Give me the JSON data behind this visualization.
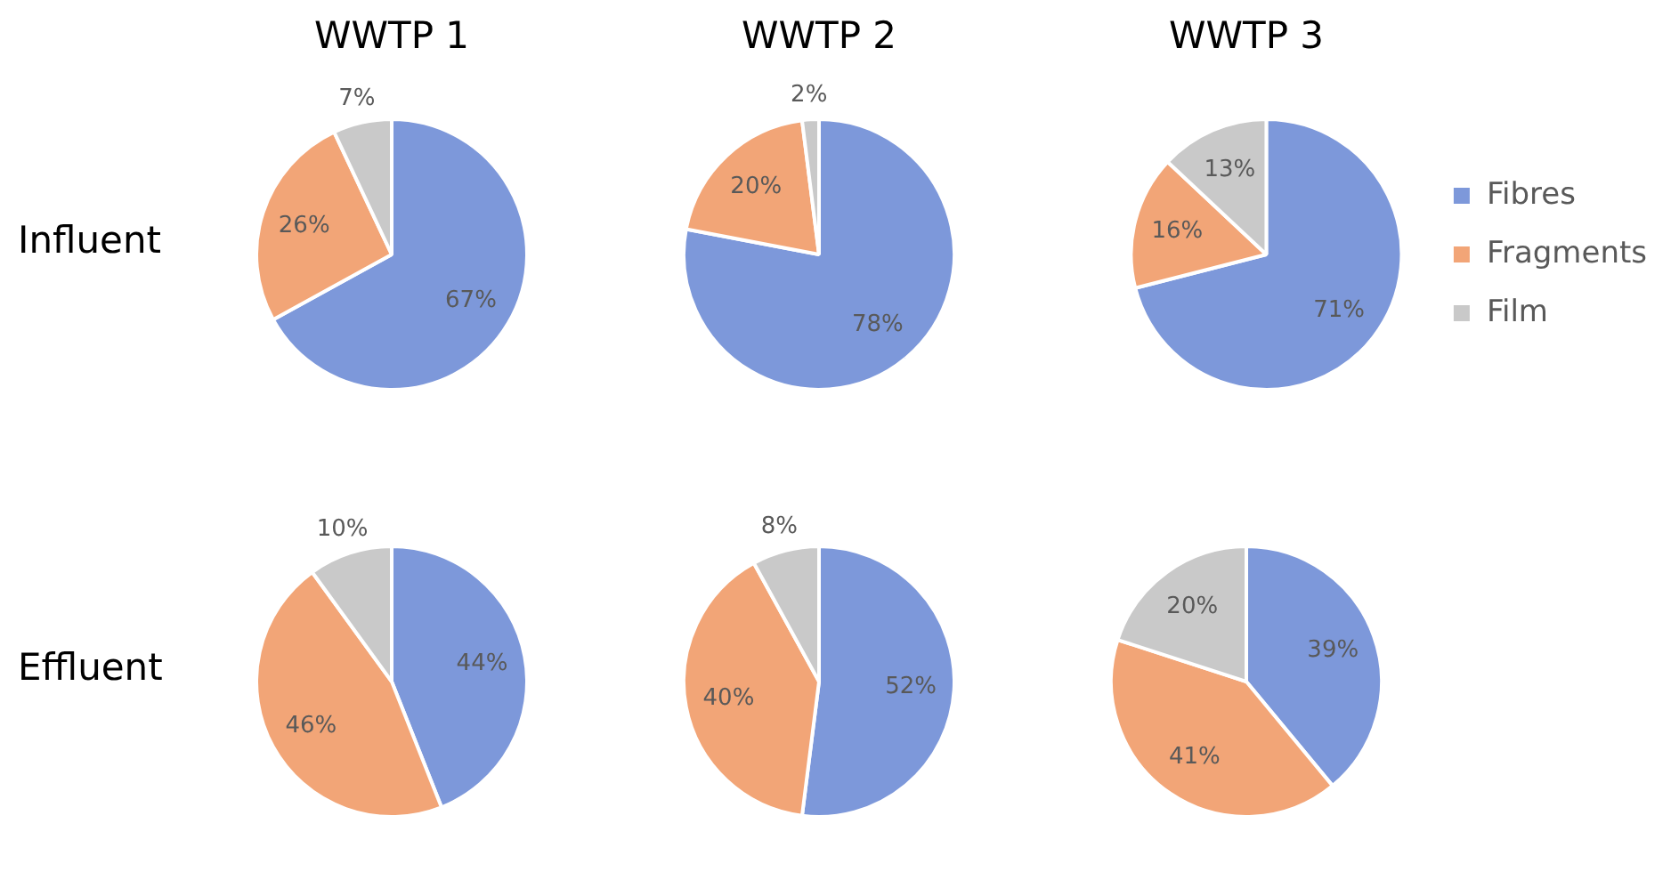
{
  "chart_data": [
    {
      "type": "pie",
      "title": "WWTP 1",
      "annotations": [
        "Influent"
      ],
      "categories": [
        null,
        null,
        null
      ],
      "values": [
        67,
        26,
        7
      ],
      "value_labels": [
        "67%",
        "26%",
        "7%"
      ],
      "colors": [
        "#7d98da",
        "#f2a577",
        "#c9c9c9"
      ]
    },
    {
      "type": "pie",
      "title": "WWTP 2",
      "categories": [
        null,
        null,
        null
      ],
      "values": [
        78,
        20,
        2
      ],
      "value_labels": [
        "78%",
        "20%",
        "2%"
      ],
      "colors": [
        "#7d98da",
        "#f2a577",
        "#c9c9c9"
      ]
    },
    {
      "type": "pie",
      "title": "WWTP 3",
      "categories": [
        "Fibres",
        "Fragments",
        "Film"
      ],
      "values": [
        71,
        16,
        13
      ],
      "value_labels": [
        "71%",
        "16%",
        "13%"
      ],
      "colors": [
        "#7d98da",
        "#f2a577",
        "#c9c9c9"
      ],
      "legend": "right"
    },
    {
      "type": "pie",
      "annotations": [
        "Effluent"
      ],
      "categories": [
        null,
        null,
        null
      ],
      "values": [
        44,
        46,
        10
      ],
      "value_labels": [
        "44%",
        "46%",
        "10%"
      ],
      "colors": [
        "#7d98da",
        "#f2a577",
        "#c9c9c9"
      ]
    },
    {
      "type": "pie",
      "categories": [
        null,
        null,
        null
      ],
      "values": [
        52,
        40,
        8
      ],
      "value_labels": [
        "52%",
        "40%",
        "8%"
      ],
      "colors": [
        "#7d98da",
        "#f2a577",
        "#c9c9c9"
      ]
    },
    {
      "type": "pie",
      "categories": [
        null,
        null,
        null
      ],
      "values": [
        39,
        41,
        20
      ],
      "value_labels": [
        "39%",
        "41%",
        "20%"
      ],
      "colors": [
        "#7d98da",
        "#f2a577",
        "#c9c9c9"
      ]
    }
  ]
}
